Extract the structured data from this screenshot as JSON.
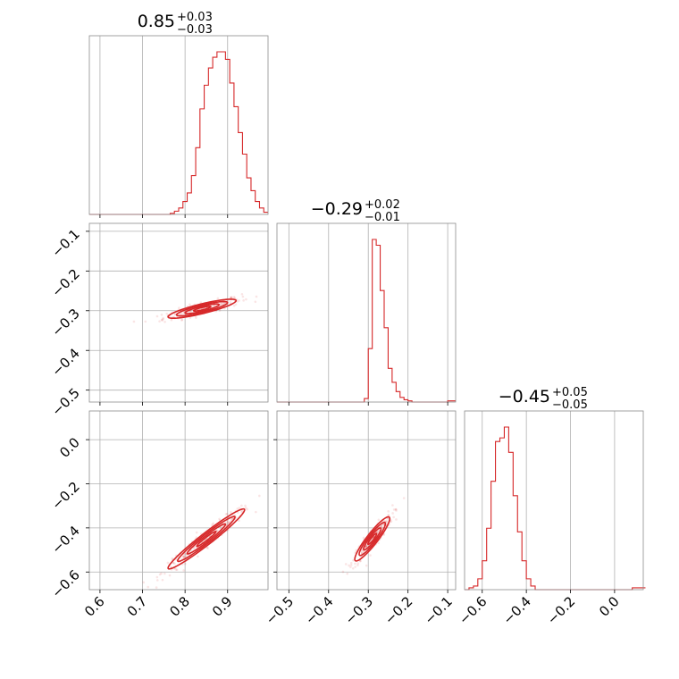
{
  "chart_data": {
    "type": "corner",
    "color": "#d62728",
    "grid": true,
    "parameters": [
      {
        "title": {
          "median": "0.85",
          "plus": "+0.03",
          "minus": "−0.03"
        },
        "range": [
          0.575,
          0.995
        ],
        "ticks": [
          0.6,
          0.7,
          0.8,
          0.9
        ],
        "tick_labels": [
          "0.6",
          "0.7",
          "0.8",
          "0.9"
        ],
        "hist": {
          "edges_start": 0.575,
          "bin_width": 0.01,
          "counts": [
            0,
            0,
            0,
            0,
            0,
            0,
            0,
            0,
            0,
            0,
            0,
            0,
            0,
            0,
            0,
            0,
            0,
            0,
            0,
            1,
            3,
            6,
            12,
            20,
            36,
            62,
            98,
            120,
            136,
            146,
            151,
            151,
            144,
            122,
            100,
            76,
            56,
            34,
            22,
            12,
            6,
            2
          ]
        }
      },
      {
        "title": {
          "median": "−0.29",
          "plus": "+0.02",
          "minus": "−0.01"
        },
        "range": [
          -0.53,
          -0.08
        ],
        "ticks": [
          -0.5,
          -0.4,
          -0.3,
          -0.2,
          -0.1
        ],
        "tick_labels": [
          "−0.5",
          "−0.4",
          "−0.3",
          "−0.2",
          "−0.1"
        ],
        "hist": {
          "edges_start": -0.53,
          "bin_width": 0.01,
          "counts": [
            0,
            0,
            0,
            0,
            0,
            0,
            0,
            0,
            0,
            0,
            0,
            0,
            0,
            0,
            0,
            0,
            0,
            0,
            0,
            0,
            0,
            0,
            3,
            46,
            140,
            135,
            96,
            64,
            29,
            17,
            9,
            4,
            2,
            1,
            0,
            0,
            0,
            0,
            0,
            0,
            0,
            0,
            0,
            1,
            1
          ]
        }
      },
      {
        "title": {
          "median": "−0.45",
          "plus": "+0.05",
          "minus": "−0.05"
        },
        "range": [
          -0.68,
          0.13
        ],
        "ticks": [
          -0.6,
          -0.4,
          -0.2,
          0.0
        ],
        "tick_labels": [
          "−0.6",
          "−0.4",
          "−0.2",
          "0.0"
        ],
        "hist": {
          "edges_start": -0.68,
          "bin_width": 0.02,
          "counts": [
            0,
            1,
            2,
            6,
            16,
            34,
            60,
            82,
            84,
            90,
            76,
            52,
            32,
            16,
            6,
            2,
            0,
            0,
            0,
            0,
            0,
            0,
            0,
            0,
            0,
            0,
            0,
            0,
            0,
            0,
            0,
            0,
            0,
            0,
            0,
            0,
            0,
            0,
            1,
            1,
            1
          ]
        }
      }
    ],
    "pairs": [
      {
        "x_param": 0,
        "y_param": 1,
        "mean": [
          0.84,
          -0.295
        ],
        "sd": [
          0.04,
          0.012
        ],
        "rho": 0.85,
        "y_ticks": [
          -0.5,
          -0.4,
          -0.3,
          -0.2,
          -0.1
        ],
        "y_tick_labels": [
          "−0.5",
          "−0.4",
          "−0.3",
          "−0.2",
          "−0.1"
        ]
      },
      {
        "x_param": 0,
        "y_param": 2,
        "mean": [
          0.85,
          -0.45
        ],
        "sd": [
          0.045,
          0.068
        ],
        "rho": 0.97,
        "y_ticks": [
          -0.6,
          -0.4,
          -0.2,
          0.0
        ],
        "y_tick_labels": [
          "−0.6",
          "−0.4",
          "−0.2",
          "0.0"
        ]
      },
      {
        "x_param": 1,
        "y_param": 2,
        "mean": [
          -0.29,
          -0.45
        ],
        "sd": [
          0.022,
          0.05
        ],
        "rho": 0.92,
        "y_ticks": [],
        "y_tick_labels": []
      }
    ],
    "contour_levels": [
      0.5,
      1.0,
      1.5,
      2.0
    ]
  }
}
